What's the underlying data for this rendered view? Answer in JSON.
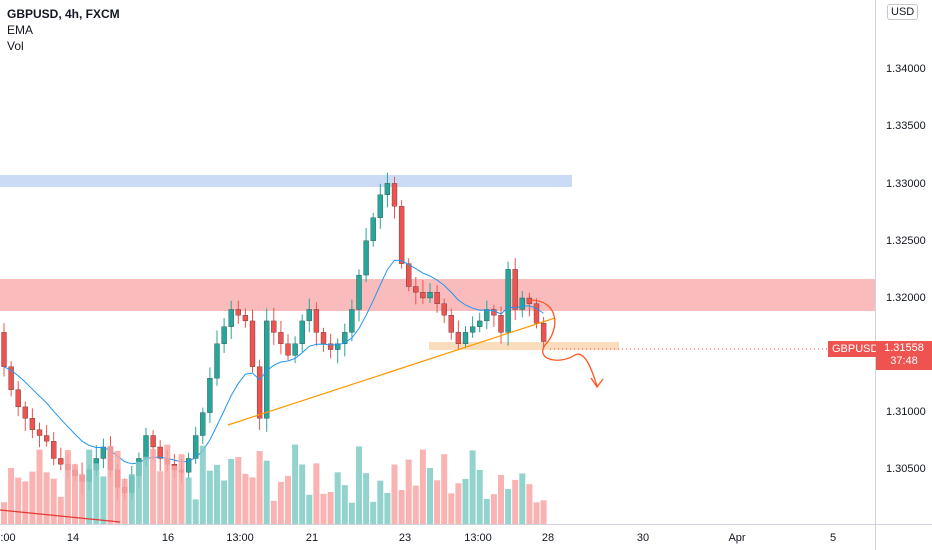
{
  "legend": {
    "title": "GBPUSD, 4h, FXCM",
    "indicator_1": "EMA",
    "indicator_2": "Vol"
  },
  "price_axis": {
    "currency": "USD",
    "ticks": [
      "1.34000",
      "1.33500",
      "1.33000",
      "1.32500",
      "1.32000",
      "1.31000",
      "1.30500"
    ],
    "top_partial": "1"
  },
  "time_axis": {
    "labels": [
      ":00",
      "14",
      "16",
      "13:00",
      "21",
      "23",
      "13:00",
      "28",
      "30",
      "Apr",
      "5"
    ]
  },
  "last_price": {
    "symbol": "GBPUSD",
    "price": "1.31558",
    "countdown": "37:48"
  },
  "colors": {
    "up": "#26a69a",
    "down": "#ef5350",
    "ema": "#2196f3",
    "trendline": "#ff9800",
    "resistance_zone": "#f8b4b4",
    "supply_zone": "#c5d7f5",
    "support_zone": "#fad9b5"
  },
  "icons": [
    "curved-arrow-down-icon"
  ]
}
